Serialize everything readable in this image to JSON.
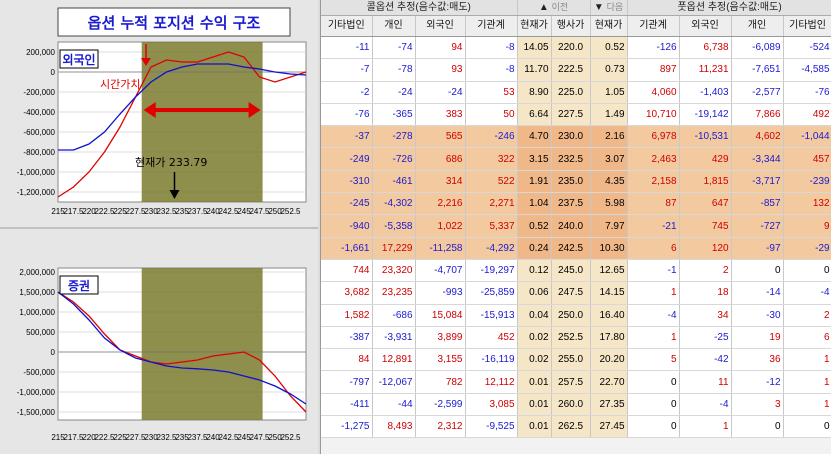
{
  "left": {
    "title": "옵션 누적 포지션 수익 구조",
    "chart_top_label": "외국인",
    "chart_bottom_label": "증권",
    "annotation_time_value": "시간가치",
    "annotation_current_price": "현재가 233.79",
    "colors": {
      "band": "#7a7a2e",
      "red": "#e00000",
      "blue": "#1010d0",
      "title_text": "#1a1ad0"
    }
  },
  "chart_data": [
    {
      "type": "line",
      "title": "외국인",
      "x": [
        215,
        217.5,
        220,
        222.5,
        225,
        227.5,
        230,
        232.5,
        235,
        237.5,
        240,
        242.5,
        245,
        247.5,
        250,
        252.5,
        255
      ],
      "xticks": [
        "215",
        "217.5",
        "220",
        "222.5",
        "225",
        "227.5",
        "230",
        "232.5",
        "235",
        "237.5",
        "240",
        "242.5",
        "245",
        "247.5",
        "250",
        "252.5"
      ],
      "yticks": [
        "200,000",
        "0",
        "-200,000",
        "-400,000",
        "-600,000",
        "-800,000",
        "-1,000,000",
        "-1,200,000"
      ],
      "ylim": [
        -1300000,
        300000
      ],
      "highlight_range": [
        228.5,
        248
      ],
      "current_price": 233.79,
      "series": [
        {
          "color": "#e00000",
          "values": [
            -1250000,
            -1150000,
            -1000000,
            -800000,
            -550000,
            -250000,
            50000,
            120000,
            100000,
            100000,
            150000,
            200000,
            150000,
            -50000,
            -100000,
            -50000,
            0
          ]
        },
        {
          "color": "#1010d0",
          "values": [
            -780000,
            -780000,
            -720000,
            -600000,
            -420000,
            -250000,
            -100000,
            0,
            50000,
            80000,
            80000,
            80000,
            50000,
            30000,
            0,
            -20000,
            -30000
          ]
        }
      ]
    },
    {
      "type": "line",
      "title": "증권",
      "x": [
        215,
        217.5,
        220,
        222.5,
        225,
        227.5,
        230,
        232.5,
        235,
        237.5,
        240,
        242.5,
        245,
        247.5,
        250,
        252.5,
        255
      ],
      "xticks": [
        "215",
        "217.5",
        "220",
        "222.5",
        "225",
        "227.5",
        "230",
        "232.5",
        "235",
        "237.5",
        "240",
        "242.5",
        "245",
        "247.5",
        "250",
        "252.5"
      ],
      "yticks": [
        "2,000,000",
        "1,500,000",
        "1,000,000",
        "500,000",
        "0",
        "-500,000",
        "-1,000,000",
        "-1,500,000"
      ],
      "ylim": [
        -1700000,
        2100000
      ],
      "highlight_range": [
        228.5,
        248
      ],
      "series": [
        {
          "color": "#e00000",
          "values": [
            1500000,
            1250000,
            900000,
            450000,
            50000,
            -100000,
            -250000,
            -300000,
            -250000,
            -200000,
            -100000,
            -50000,
            0,
            -200000,
            -600000,
            -1100000,
            -1500000
          ]
        },
        {
          "color": "#1010d0",
          "values": [
            1500000,
            1200000,
            800000,
            350000,
            50000,
            -150000,
            -250000,
            -350000,
            -400000,
            -420000,
            -450000,
            -500000,
            -600000,
            -700000,
            -850000,
            -1050000,
            -1300000
          ]
        }
      ]
    }
  ],
  "grid": {
    "call_header": "콜옵션 추정(음수값:매도)",
    "nav_prev": "이전",
    "nav_next": "다음",
    "put_header": "풋옵션 추정(음수값:매도)",
    "columns": [
      "기타법인",
      "개인",
      "외국인",
      "기관계",
      "현재가",
      "행사가",
      "현재가",
      "기관계",
      "외국인",
      "개인",
      "기타법인"
    ],
    "rows": [
      {
        "h": false,
        "c": [
          "-11",
          "-74",
          "94",
          "-8",
          "14.05",
          "220.0",
          "0.52",
          "-126",
          "6,738",
          "-6,089",
          "-524"
        ]
      },
      {
        "h": false,
        "c": [
          "-7",
          "-78",
          "93",
          "-8",
          "11.70",
          "222.5",
          "0.73",
          "897",
          "11,231",
          "-7,651",
          "-4,585"
        ]
      },
      {
        "h": false,
        "c": [
          "-2",
          "-24",
          "-24",
          "53",
          "8.90",
          "225.0",
          "1.05",
          "4,060",
          "-1,403",
          "-2,577",
          "-76"
        ]
      },
      {
        "h": false,
        "c": [
          "-76",
          "-365",
          "383",
          "50",
          "6.64",
          "227.5",
          "1.49",
          "10,710",
          "-19,142",
          "7,866",
          "492"
        ]
      },
      {
        "h": true,
        "c": [
          "-37",
          "-278",
          "565",
          "-246",
          "4.70",
          "230.0",
          "2.16",
          "6,978",
          "-10,531",
          "4,602",
          "-1,044"
        ]
      },
      {
        "h": true,
        "c": [
          "-249",
          "-726",
          "686",
          "322",
          "3.15",
          "232.5",
          "3.07",
          "2,463",
          "429",
          "-3,344",
          "457"
        ]
      },
      {
        "h": true,
        "c": [
          "-310",
          "-461",
          "314",
          "522",
          "1.91",
          "235.0",
          "4.35",
          "2,158",
          "1,815",
          "-3,717",
          "-239"
        ]
      },
      {
        "h": true,
        "c": [
          "-245",
          "-4,302",
          "2,216",
          "2,271",
          "1.04",
          "237.5",
          "5.98",
          "87",
          "647",
          "-857",
          "132"
        ]
      },
      {
        "h": true,
        "c": [
          "-940",
          "-5,358",
          "1,022",
          "5,337",
          "0.52",
          "240.0",
          "7.97",
          "-21",
          "745",
          "-727",
          "9"
        ]
      },
      {
        "h": true,
        "c": [
          "-1,661",
          "17,229",
          "-11,258",
          "-4,292",
          "0.24",
          "242.5",
          "10.30",
          "6",
          "120",
          "-97",
          "-29"
        ]
      },
      {
        "h": false,
        "c": [
          "744",
          "23,320",
          "-4,707",
          "-19,297",
          "0.12",
          "245.0",
          "12.65",
          "-1",
          "2",
          "0",
          "0"
        ]
      },
      {
        "h": false,
        "c": [
          "3,682",
          "23,235",
          "-993",
          "-25,859",
          "0.06",
          "247.5",
          "14.15",
          "1",
          "18",
          "-14",
          "-4"
        ]
      },
      {
        "h": false,
        "c": [
          "1,582",
          "-686",
          "15,084",
          "-15,913",
          "0.04",
          "250.0",
          "16.40",
          "-4",
          "34",
          "-30",
          "2"
        ]
      },
      {
        "h": false,
        "c": [
          "-387",
          "-3,931",
          "3,899",
          "452",
          "0.02",
          "252.5",
          "17.80",
          "1",
          "-25",
          "19",
          "6"
        ]
      },
      {
        "h": false,
        "c": [
          "84",
          "12,891",
          "3,155",
          "-16,119",
          "0.02",
          "255.0",
          "20.20",
          "5",
          "-42",
          "36",
          "1"
        ]
      },
      {
        "h": false,
        "c": [
          "-797",
          "-12,067",
          "782",
          "12,112",
          "0.01",
          "257.5",
          "22.70",
          "0",
          "11",
          "-12",
          "1"
        ]
      },
      {
        "h": false,
        "c": [
          "-411",
          "-44",
          "-2,599",
          "3,085",
          "0.01",
          "260.0",
          "27.35",
          "0",
          "-4",
          "3",
          "1"
        ]
      },
      {
        "h": false,
        "c": [
          "-1,275",
          "8,493",
          "2,312",
          "-9,525",
          "0.01",
          "262.5",
          "27.45",
          "0",
          "1",
          "0",
          "0"
        ]
      }
    ]
  }
}
